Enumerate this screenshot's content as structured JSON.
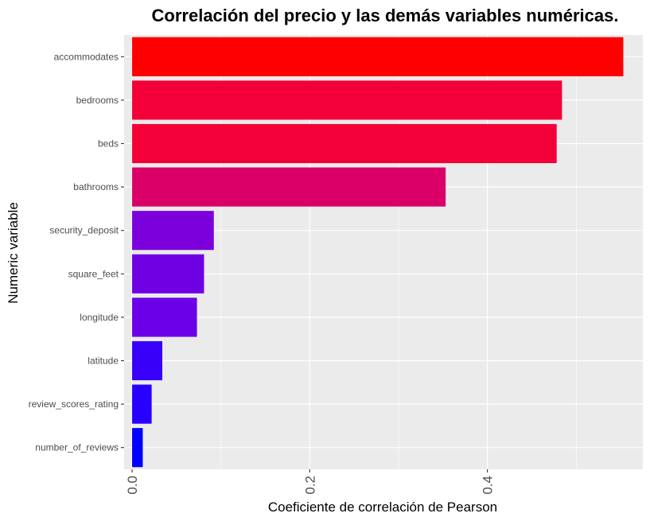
{
  "chart_data": {
    "type": "bar",
    "orientation": "horizontal",
    "title": "Correlación del precio y las demás variables numéricas.",
    "xlabel": "Coeficiente de correlación de Pearson",
    "ylabel": "Numeric variable",
    "categories": [
      "accommodates",
      "bedrooms",
      "beds",
      "bathrooms",
      "security_deposit",
      "square_feet",
      "longitude",
      "latitude",
      "review_scores_rating",
      "number_of_reviews"
    ],
    "values": [
      0.553,
      0.484,
      0.478,
      0.353,
      0.092,
      0.081,
      0.073,
      0.034,
      0.022,
      0.012
    ],
    "bar_colors": [
      "#FF0000",
      "#F40038",
      "#F40038",
      "#DB0068",
      "#7C00DC",
      "#7000E4",
      "#6B00E8",
      "#3800F8",
      "#2800FF",
      "#0000FF"
    ],
    "xlim": [
      -0.009,
      0.575
    ],
    "x_ticks": [
      {
        "value": 0.0,
        "label": "0.0"
      },
      {
        "value": 0.2,
        "label": "0.2"
      },
      {
        "value": 0.4,
        "label": "0.4"
      }
    ],
    "grid": true,
    "panel_background": "#EBEBEB",
    "grid_color": "#FFFFFF",
    "legend": "none"
  }
}
